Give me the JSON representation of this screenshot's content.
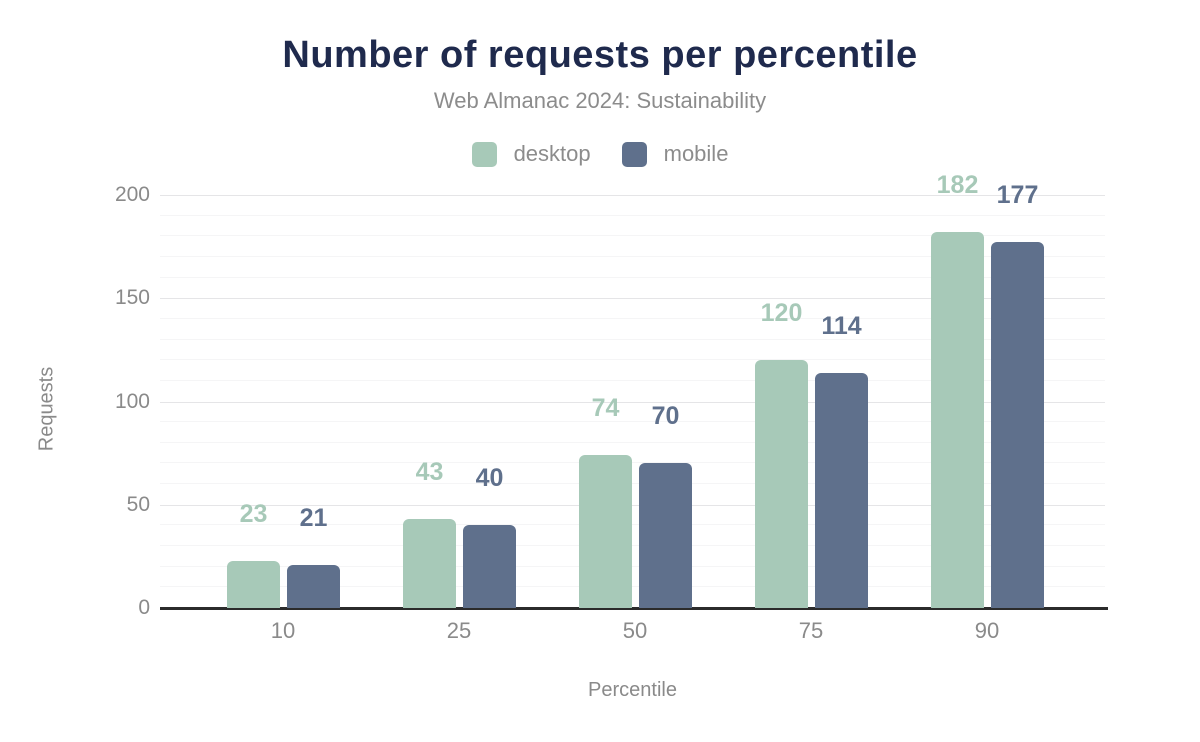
{
  "chart_data": {
    "type": "bar",
    "title": "Number of requests per percentile",
    "subtitle": "Web Almanac 2024: Sustainability",
    "xlabel": "Percentile",
    "ylabel": "Requests",
    "categories": [
      "10",
      "25",
      "50",
      "75",
      "90"
    ],
    "series": [
      {
        "name": "desktop",
        "color": "#a7c9b8",
        "values": [
          23,
          43,
          74,
          120,
          182
        ]
      },
      {
        "name": "mobile",
        "color": "#5f708c",
        "values": [
          21,
          40,
          70,
          114,
          177
        ]
      }
    ],
    "ylim": [
      0,
      200
    ],
    "yticks": [
      0,
      50,
      100,
      150,
      200
    ],
    "minor_tick_interval": 10,
    "grid": "on",
    "legend_position": "top",
    "palette": {
      "title_text": "#1f2a4d",
      "muted_text": "#8a8a8a",
      "grid_major": "#e5e5e7",
      "grid_minor": "#f5f5f6",
      "axis_line": "#2b2b2b",
      "background": "#ffffff"
    }
  }
}
